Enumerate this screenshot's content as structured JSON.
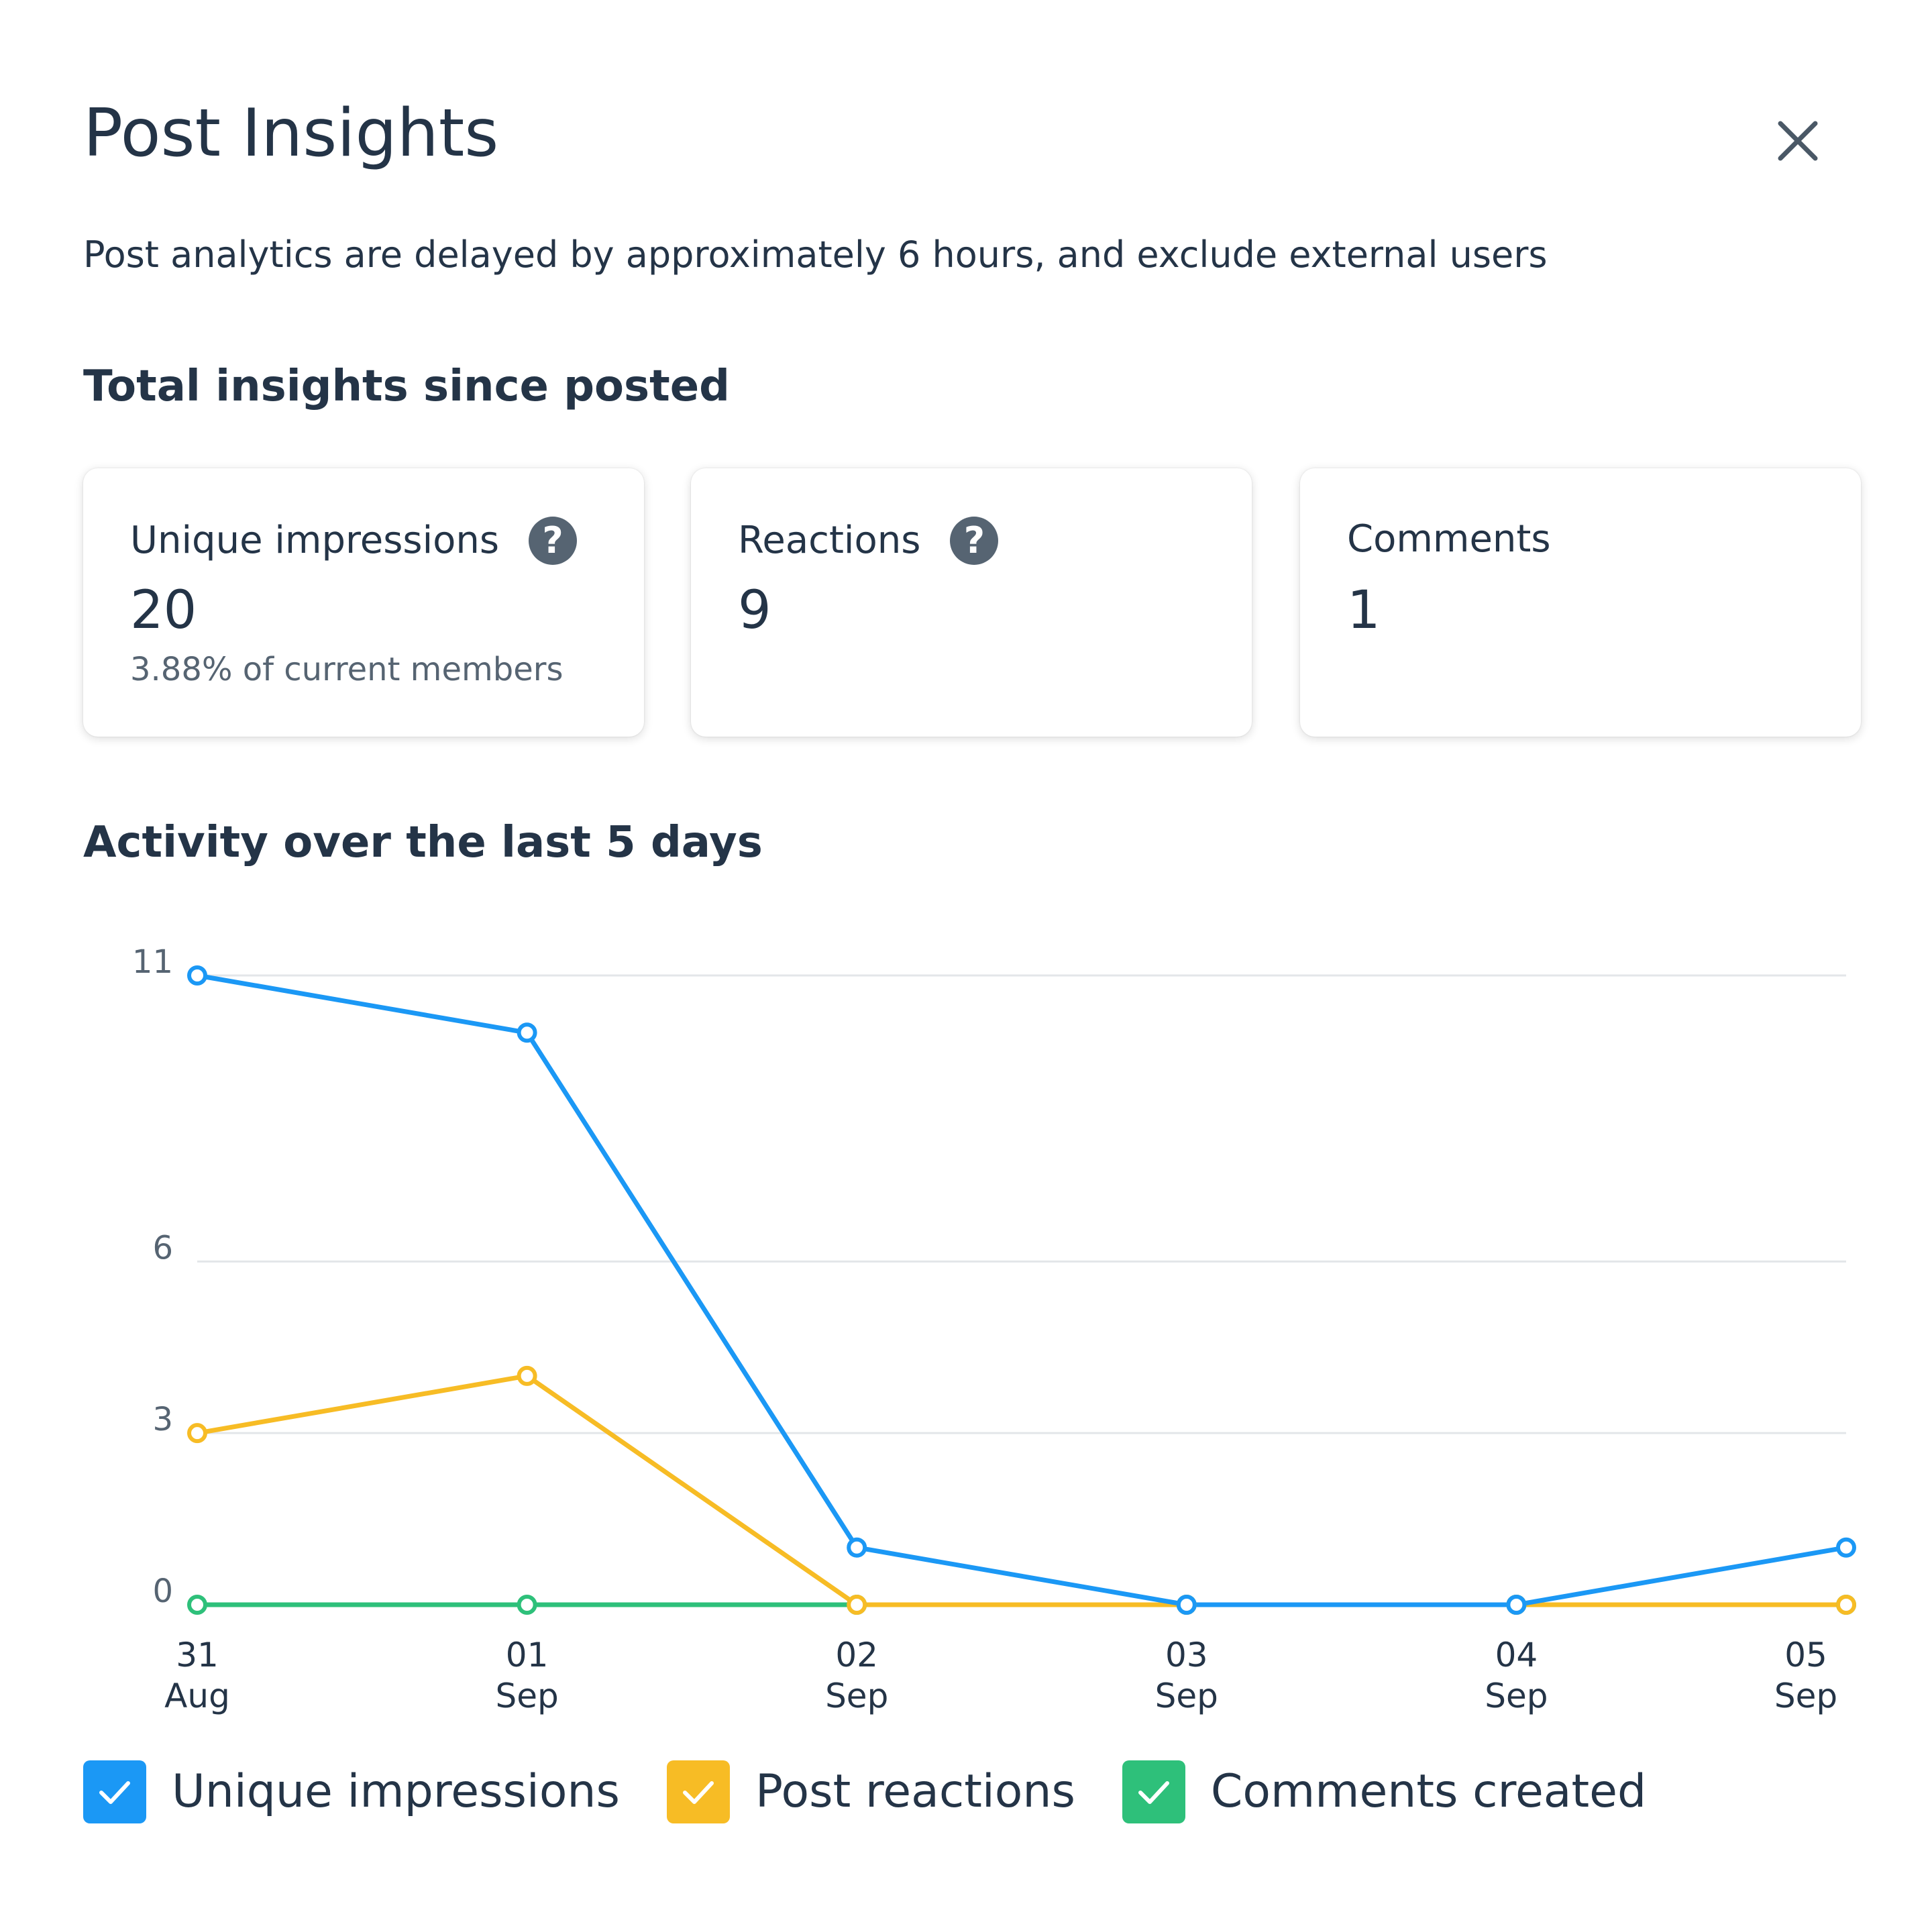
{
  "header": {
    "title": "Post Insights",
    "subtitle": "Post analytics are delayed by approximately 6 hours, and exclude external users"
  },
  "totals": {
    "heading": "Total insights since posted",
    "cards": [
      {
        "label": "Unique impressions",
        "value": "20",
        "note": "3.88% of current members",
        "help_icon": "question-icon"
      },
      {
        "label": "Reactions",
        "value": "9",
        "help_icon": "question-icon"
      },
      {
        "label": "Comments",
        "value": "1"
      }
    ]
  },
  "activity": {
    "heading": "Activity over the last 5 days"
  },
  "colors": {
    "impressions": "#1b98f5",
    "reactions": "#f7bc25",
    "comments": "#2ec07a",
    "grid": "#e3e6e9",
    "axis_text": "#566472"
  },
  "chart_data": {
    "type": "line",
    "categories": [
      [
        "31",
        "Aug"
      ],
      [
        "01",
        "Sep"
      ],
      [
        "02",
        "Sep"
      ],
      [
        "03",
        "Sep"
      ],
      [
        "04",
        "Sep"
      ],
      [
        "05",
        "Sep"
      ]
    ],
    "y_ticks": [
      "0",
      "3",
      "6",
      "11"
    ],
    "ylim": [
      0,
      11
    ],
    "grid": true,
    "series": [
      {
        "name": "Unique impressions",
        "key": "impressions",
        "values": [
          11,
          10,
          1,
          0,
          0,
          1
        ]
      },
      {
        "name": "Post reactions",
        "key": "reactions",
        "values": [
          3,
          4,
          0,
          0,
          0,
          0
        ]
      },
      {
        "name": "Comments created",
        "key": "comments",
        "values": [
          0,
          0,
          0,
          0,
          0,
          0
        ]
      }
    ]
  },
  "legend": [
    {
      "label": "Unique impressions",
      "key": "impressions",
      "checked": true
    },
    {
      "label": "Post reactions",
      "key": "reactions",
      "checked": true
    },
    {
      "label": "Comments created",
      "key": "comments",
      "checked": true
    }
  ]
}
